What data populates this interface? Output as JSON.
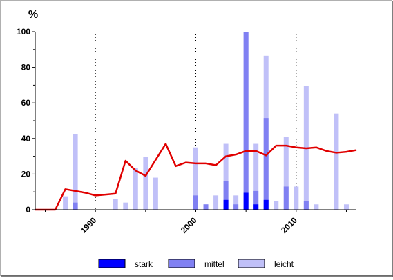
{
  "chart_data": {
    "type": "bar",
    "title": "",
    "ylabel": "%",
    "xlabel": "",
    "xlim": [
      1984,
      2016
    ],
    "ylim": [
      0,
      100
    ],
    "yticks": [
      0,
      20,
      40,
      60,
      80,
      100
    ],
    "xticks": [
      1990,
      2000,
      2010
    ],
    "vlines": [
      1990,
      2000,
      2010
    ],
    "grid": false,
    "legend_position": "bottom",
    "colors": {
      "stark": "#0000ff",
      "mittel": "#8080f2",
      "leicht": "#c0c0f8",
      "line": "#e00000"
    },
    "legend": [
      {
        "key": "stark",
        "label": "stark"
      },
      {
        "key": "mittel",
        "label": "mittel"
      },
      {
        "key": "leicht",
        "label": "leicht"
      }
    ],
    "bars": [
      {
        "x": 1987,
        "stark": 0,
        "mittel": 0,
        "leicht": 7.5
      },
      {
        "x": 1988,
        "stark": 0,
        "mittel": 4,
        "leicht": 42.5
      },
      {
        "x": 1992,
        "stark": 0,
        "mittel": 0,
        "leicht": 6
      },
      {
        "x": 1993,
        "stark": 0,
        "mittel": 0,
        "leicht": 4
      },
      {
        "x": 1994,
        "stark": 0,
        "mittel": 0,
        "leicht": 23.5
      },
      {
        "x": 1995,
        "stark": 0,
        "mittel": 0,
        "leicht": 29.5
      },
      {
        "x": 1996,
        "stark": 0,
        "mittel": 0,
        "leicht": 18
      },
      {
        "x": 2000,
        "stark": 0,
        "mittel": 8,
        "leicht": 35
      },
      {
        "x": 2001,
        "stark": 0,
        "mittel": 3,
        "leicht": 3
      },
      {
        "x": 2002,
        "stark": 0,
        "mittel": 0,
        "leicht": 8
      },
      {
        "x": 2003,
        "stark": 5.5,
        "mittel": 16,
        "leicht": 37
      },
      {
        "x": 2004,
        "stark": 0,
        "mittel": 3,
        "leicht": 8
      },
      {
        "x": 2005,
        "stark": 9.5,
        "mittel": 100,
        "leicht": 100
      },
      {
        "x": 2006,
        "stark": 3,
        "mittel": 10.5,
        "leicht": 37
      },
      {
        "x": 2007,
        "stark": 5.5,
        "mittel": 51.5,
        "leicht": 86.5
      },
      {
        "x": 2008,
        "stark": 0,
        "mittel": 0,
        "leicht": 5
      },
      {
        "x": 2009,
        "stark": 0,
        "mittel": 13,
        "leicht": 41
      },
      {
        "x": 2010,
        "stark": 0,
        "mittel": 0,
        "leicht": 13
      },
      {
        "x": 2011,
        "stark": 0,
        "mittel": 5,
        "leicht": 69.5
      },
      {
        "x": 2012,
        "stark": 0,
        "mittel": 0,
        "leicht": 3
      },
      {
        "x": 2014,
        "stark": 0,
        "mittel": 0,
        "leicht": 54
      },
      {
        "x": 2015,
        "stark": 0,
        "mittel": 0,
        "leicht": 3
      }
    ],
    "line": {
      "x": [
        1984,
        1985,
        1986,
        1987,
        1988,
        1989,
        1990,
        1991,
        1992,
        1993,
        1994,
        1995,
        1996,
        1997,
        1998,
        1999,
        2000,
        2001,
        2002,
        2003,
        2004,
        2005,
        2006,
        2007,
        2008,
        2009,
        2010,
        2011,
        2012,
        2013,
        2014,
        2015,
        2016
      ],
      "values": [
        0,
        0,
        0,
        11.5,
        10.5,
        9.5,
        8,
        8.5,
        9,
        27.5,
        22,
        19,
        28,
        37,
        24.5,
        26.5,
        26,
        26,
        25,
        30,
        31,
        33,
        33,
        30.5,
        36,
        36,
        35,
        34.5,
        35,
        33,
        32,
        32.5,
        33.5
      ]
    }
  }
}
